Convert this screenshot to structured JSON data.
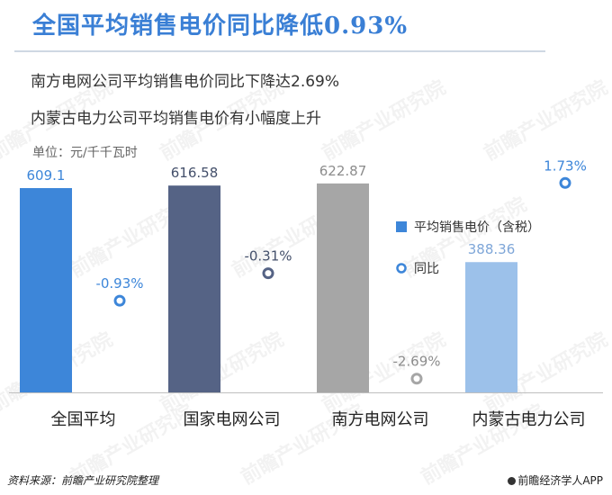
{
  "title": "全国平均销售电价同比降低0.93%",
  "subtitles": [
    "南方电网公司平均销售电价同比下降达2.69%",
    "内蒙古电力公司平均销售电价有小幅度上升"
  ],
  "unit_label": "单位：元/千千瓦时",
  "source": "资料来源：前瞻产业研究院整理",
  "brand": "前瞻经济学人APP",
  "watermark": "前瞻产业研究院",
  "colors": {
    "title": "#3a7fd5",
    "bars": [
      "#3d86d9",
      "#556385",
      "#a6a6a6",
      "#9cc1ea"
    ],
    "rings": [
      "#3d86d9",
      "#556385",
      "#a6a6a6",
      "#3d86d9"
    ],
    "axis": "#bfbfbf"
  },
  "chart_data": {
    "type": "bar",
    "categories": [
      "全国平均",
      "国家电网公司",
      "南方电网公司",
      "内蒙古电力公司"
    ],
    "series": [
      {
        "name": "平均销售电价（含税）",
        "type": "bar",
        "values": [
          609.1,
          616.58,
          622.87,
          388.36
        ],
        "labels": [
          "609.1",
          "616.58",
          "622.87",
          "388.36"
        ]
      },
      {
        "name": "同比",
        "type": "scatter",
        "values": [
          -0.93,
          -0.31,
          -2.69,
          1.73
        ],
        "labels": [
          "-0.93%",
          "-0.31%",
          "-2.69%",
          "1.73%"
        ]
      }
    ],
    "bar_ylim": [
      0,
      660
    ],
    "pct_ylim": [
      -3.0,
      2.0
    ],
    "legend_position": "right",
    "grid": false
  }
}
